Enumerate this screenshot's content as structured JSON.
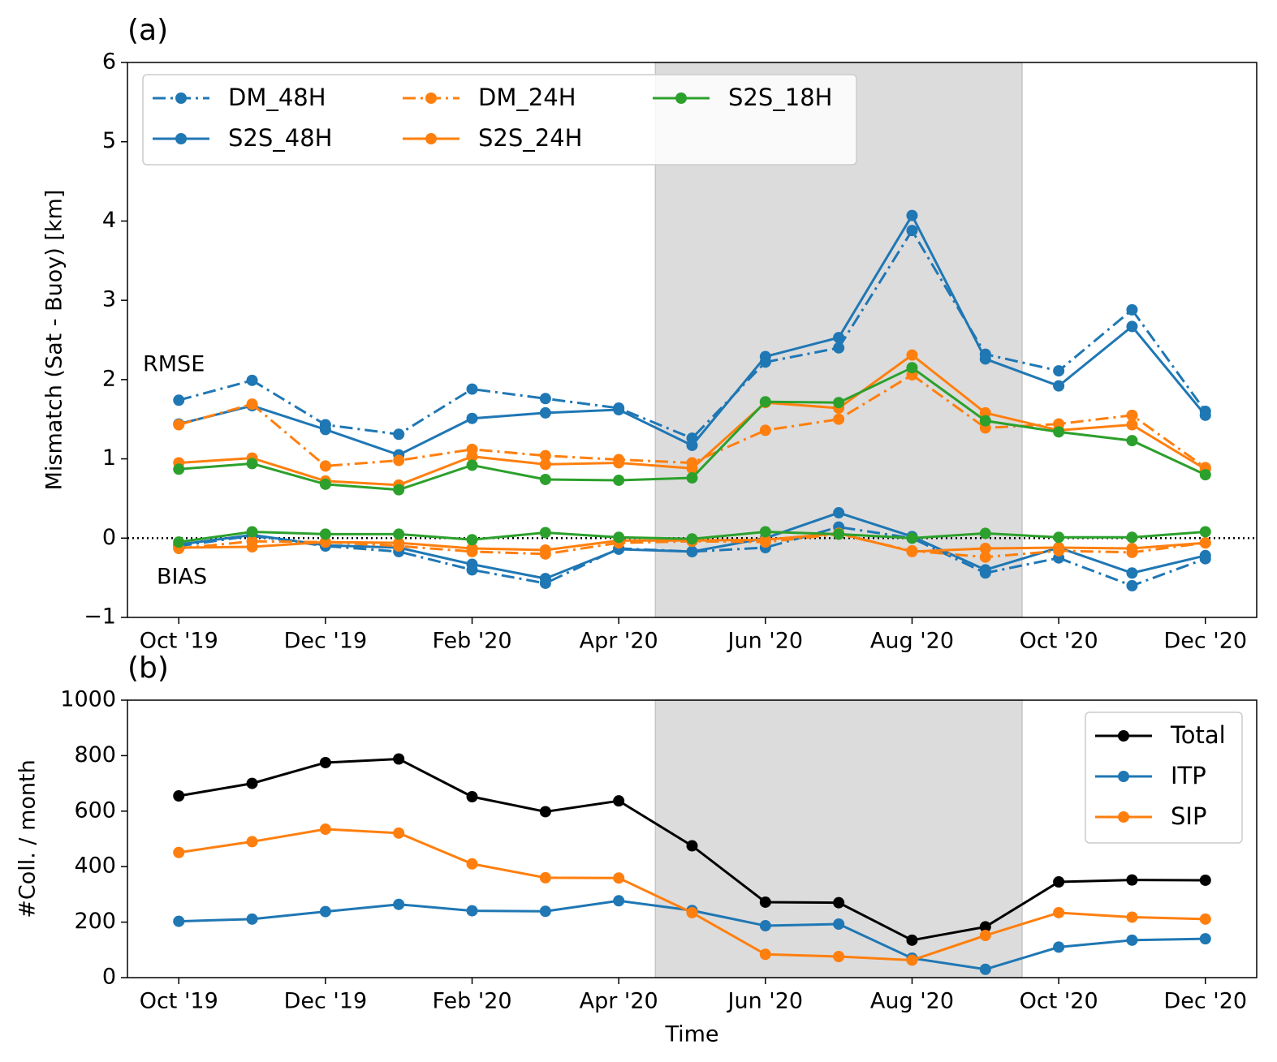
{
  "chart_data": [
    {
      "type": "line",
      "title": "(a)",
      "y_label": "Mismatch (Sat - Buoy) [km]",
      "categories": [
        "Oct '19",
        null,
        "Dec '19",
        null,
        "Feb '20",
        null,
        "Apr '20",
        null,
        "Jun '20",
        null,
        "Aug '20",
        null,
        "Oct '20",
        null,
        "Dec '20"
      ],
      "ylim": [
        -1,
        6
      ],
      "yticks": [
        {
          "value": -1,
          "label": "−1"
        },
        0,
        1,
        2,
        3,
        4,
        5,
        6
      ],
      "zero_line": true,
      "shaded_span": [
        6.5,
        11.5
      ],
      "legend": "upper left",
      "legend_ncol": 3,
      "annotations": [
        "RMSE",
        "BIAS"
      ],
      "series": [
        {
          "name": "DM_48H",
          "color": "#1f77b4",
          "linestyle": "dashdot",
          "values": [
            1.74,
            1.99,
            1.43,
            1.31,
            1.88,
            1.76,
            1.64,
            1.26,
            2.22,
            2.4,
            3.88,
            2.32,
            2.11,
            2.88,
            1.6
          ],
          "bias": [
            -0.1,
            0.03,
            -0.1,
            -0.17,
            -0.4,
            -0.57,
            -0.13,
            -0.17,
            -0.12,
            0.14,
            0.0,
            -0.44,
            -0.25,
            -0.6,
            -0.26
          ]
        },
        {
          "name": "S2S_48H",
          "color": "#1f77b4",
          "linestyle": "solid",
          "values": [
            1.44,
            1.67,
            1.37,
            1.05,
            1.51,
            1.58,
            1.62,
            1.17,
            2.29,
            2.53,
            4.07,
            2.26,
            1.92,
            2.67,
            1.55
          ],
          "bias": [
            -0.08,
            0.04,
            -0.09,
            -0.12,
            -0.33,
            -0.51,
            -0.14,
            -0.17,
            0.0,
            0.32,
            0.02,
            -0.4,
            -0.12,
            -0.44,
            -0.22
          ]
        },
        {
          "name": "DM_24H",
          "color": "#ff7f0e",
          "linestyle": "dashdot",
          "values": [
            1.43,
            1.69,
            0.91,
            0.98,
            1.12,
            1.04,
            0.99,
            0.95,
            1.36,
            1.5,
            2.06,
            1.39,
            1.44,
            1.55,
            0.89
          ],
          "bias": [
            -0.13,
            -0.04,
            -0.05,
            -0.1,
            -0.17,
            -0.2,
            -0.06,
            -0.04,
            -0.05,
            0.05,
            -0.16,
            -0.24,
            -0.16,
            -0.18,
            -0.06
          ]
        },
        {
          "name": "S2S_24H",
          "color": "#ff7f0e",
          "linestyle": "solid",
          "values": [
            0.95,
            1.01,
            0.72,
            0.67,
            1.03,
            0.93,
            0.95,
            0.88,
            1.71,
            1.64,
            2.31,
            1.58,
            1.36,
            1.43,
            0.87
          ],
          "bias": [
            -0.12,
            -0.11,
            -0.05,
            -0.06,
            -0.13,
            -0.15,
            -0.03,
            -0.03,
            -0.02,
            0.06,
            -0.17,
            -0.13,
            -0.12,
            -0.13,
            -0.06
          ]
        },
        {
          "name": "S2S_18H",
          "color": "#2ca02c",
          "linestyle": "solid",
          "values": [
            0.87,
            0.94,
            0.68,
            0.61,
            0.92,
            0.74,
            0.73,
            0.76,
            1.72,
            1.71,
            2.15,
            1.48,
            1.34,
            1.23,
            0.8
          ],
          "bias": [
            -0.05,
            0.08,
            0.05,
            0.05,
            -0.02,
            0.07,
            0.01,
            -0.01,
            0.08,
            0.05,
            0.0,
            0.06,
            0.01,
            0.01,
            0.08
          ]
        }
      ]
    },
    {
      "type": "line",
      "title": "(b)",
      "y_label": "#Coll. / month",
      "x_label": "Time",
      "categories": [
        "Oct '19",
        null,
        "Dec '19",
        null,
        "Feb '20",
        null,
        "Apr '20",
        null,
        "Jun '20",
        null,
        "Aug '20",
        null,
        "Oct '20",
        null,
        "Dec '20"
      ],
      "ylim": [
        0,
        1000
      ],
      "yticks": [
        0,
        200,
        400,
        600,
        800,
        1000
      ],
      "shaded_span": [
        6.5,
        11.5
      ],
      "legend": "upper right",
      "legend_ncol": 1,
      "series": [
        {
          "name": "Total",
          "color": "#000000",
          "linestyle": "solid",
          "values": [
            655,
            700,
            775,
            788,
            652,
            598,
            637,
            475,
            272,
            270,
            135,
            183,
            345,
            352,
            351
          ]
        },
        {
          "name": "ITP",
          "color": "#1f77b4",
          "linestyle": "solid",
          "values": [
            203,
            211,
            238,
            264,
            241,
            239,
            277,
            242,
            187,
            193,
            70,
            30,
            110,
            135,
            140
          ]
        },
        {
          "name": "SIP",
          "color": "#ff7f0e",
          "linestyle": "solid",
          "values": [
            451,
            490,
            535,
            521,
            410,
            360,
            359,
            234,
            84,
            76,
            63,
            152,
            234,
            218,
            211
          ]
        }
      ]
    }
  ]
}
